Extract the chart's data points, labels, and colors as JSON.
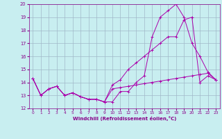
{
  "bg_color": "#c8eef0",
  "grid_color": "#a0b8c8",
  "line_color": "#aa00aa",
  "xlabel": "Windchill (Refroidissement éolien,°C)",
  "xlim": [
    -0.5,
    23.5
  ],
  "ylim": [
    12,
    20
  ],
  "xticks": [
    0,
    1,
    2,
    3,
    4,
    5,
    6,
    7,
    8,
    9,
    10,
    11,
    12,
    13,
    14,
    15,
    16,
    17,
    18,
    19,
    20,
    21,
    22,
    23
  ],
  "yticks": [
    12,
    13,
    14,
    15,
    16,
    17,
    18,
    19,
    20
  ],
  "line1": {
    "x": [
      0,
      1,
      2,
      3,
      4,
      5,
      6,
      7,
      8,
      9,
      10,
      11,
      12,
      13,
      14,
      15,
      16,
      17,
      18,
      19,
      20,
      21,
      22,
      23
    ],
    "y": [
      14.3,
      13.0,
      13.5,
      13.7,
      13.0,
      13.2,
      12.9,
      12.7,
      12.7,
      12.5,
      12.5,
      13.3,
      13.3,
      14.0,
      14.5,
      17.5,
      19.0,
      19.5,
      20.0,
      19.0,
      17.0,
      16.0,
      14.8,
      14.2
    ]
  },
  "line2": {
    "x": [
      0,
      1,
      2,
      3,
      4,
      5,
      6,
      7,
      8,
      9,
      10,
      11,
      12,
      13,
      14,
      15,
      16,
      17,
      18,
      19,
      20,
      21,
      22,
      23
    ],
    "y": [
      14.3,
      13.0,
      13.5,
      13.7,
      13.0,
      13.2,
      12.9,
      12.7,
      12.7,
      12.5,
      13.8,
      14.2,
      15.0,
      15.5,
      16.0,
      16.5,
      17.0,
      17.5,
      17.5,
      18.8,
      19.0,
      14.0,
      14.5,
      14.2
    ]
  },
  "line3": {
    "x": [
      0,
      1,
      2,
      3,
      4,
      5,
      6,
      7,
      8,
      9,
      10,
      11,
      12,
      13,
      14,
      15,
      16,
      17,
      18,
      19,
      20,
      21,
      22,
      23
    ],
    "y": [
      14.3,
      13.0,
      13.5,
      13.7,
      13.0,
      13.2,
      12.9,
      12.7,
      12.7,
      12.5,
      13.5,
      13.6,
      13.7,
      13.8,
      13.9,
      14.0,
      14.1,
      14.2,
      14.3,
      14.4,
      14.5,
      14.6,
      14.7,
      14.2
    ]
  }
}
